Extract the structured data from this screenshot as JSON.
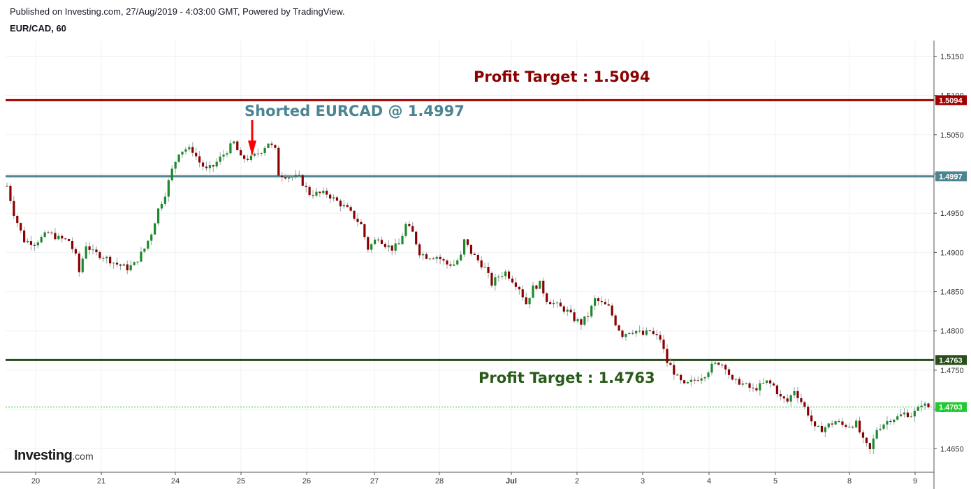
{
  "header": {
    "published": "Published on Investing.com, 27/Aug/2019 - 4:03:00 GMT, Powered by TradingView.",
    "symbol": "EUR/CAD, 60"
  },
  "logo": {
    "brand": "Investing",
    "suffix": ".com"
  },
  "chart_data": {
    "type": "candlestick",
    "symbol": "EUR/CAD",
    "interval": "60",
    "title": "",
    "xlabel": "",
    "ylabel": "",
    "ylim": [
      1.462,
      1.517
    ],
    "y_ticks": [
      1.515,
      1.51,
      1.505,
      1.5,
      1.495,
      1.49,
      1.485,
      1.48,
      1.475,
      1.47,
      1.465
    ],
    "y_tick_labels": [
      "1.5150",
      "1.5100",
      "1.5050",
      "1.5000",
      "1.4950",
      "1.4900",
      "1.4850",
      "1.4800",
      "1.4750",
      "1.4700",
      "1.4650"
    ],
    "x_tick_labels": [
      "20",
      "21",
      "24",
      "25",
      "26",
      "27",
      "28",
      "Jul",
      "2",
      "3",
      "4",
      "5",
      "8",
      "9"
    ],
    "grid": true,
    "colors": {
      "up": "#1b8a2b",
      "down": "#8b0000",
      "wick": "#9aa0a6"
    },
    "horizontal_lines": [
      {
        "value": 1.5094,
        "label": "1.5094",
        "color": "#a00000",
        "style": "solid"
      },
      {
        "value": 1.4997,
        "label": "1.4997",
        "color": "#4b8592",
        "style": "solid"
      },
      {
        "value": 1.4763,
        "label": "1.4763",
        "color": "#264d1a",
        "style": "solid"
      },
      {
        "value": 1.4703,
        "label": "1.4703",
        "color": "#22c933",
        "style": "dotted"
      }
    ],
    "annotations": [
      {
        "text": "Profit Target : 1.5094",
        "color": "#8b0000"
      },
      {
        "text": "Shorted EURCAD @ 1.4997",
        "color": "#4b8592"
      },
      {
        "text": "Profit Target : 1.4763",
        "color": "#2a5a1a"
      }
    ],
    "entry_marker": {
      "value": 1.503,
      "color": "#ff0000"
    },
    "price_path": [
      [
        0,
        1.4985
      ],
      [
        2,
        1.495
      ],
      [
        5,
        1.4915
      ],
      [
        8,
        1.4912
      ],
      [
        12,
        1.4925
      ],
      [
        15,
        1.4918
      ],
      [
        18,
        1.4915
      ],
      [
        20,
        1.4895
      ],
      [
        21,
        1.4875
      ],
      [
        23,
        1.491
      ],
      [
        25,
        1.49
      ],
      [
        28,
        1.4895
      ],
      [
        32,
        1.4885
      ],
      [
        35,
        1.488
      ],
      [
        37,
        1.4885
      ],
      [
        40,
        1.4905
      ],
      [
        42,
        1.4925
      ],
      [
        44,
        1.4955
      ],
      [
        46,
        1.4975
      ],
      [
        48,
        1.5005
      ],
      [
        50,
        1.5028
      ],
      [
        52,
        1.5032
      ],
      [
        54,
        1.503
      ],
      [
        56,
        1.5015
      ],
      [
        58,
        1.5005
      ],
      [
        60,
        1.501
      ],
      [
        63,
        1.5025
      ],
      [
        66,
        1.504
      ],
      [
        68,
        1.502
      ],
      [
        71,
        1.502
      ],
      [
        74,
        1.503
      ],
      [
        76,
        1.504
      ],
      [
        77,
        1.5035
      ],
      [
        78,
        1.503
      ],
      [
        79,
        1.5
      ],
      [
        82,
        1.4997
      ],
      [
        85,
        1.4995
      ],
      [
        88,
        1.4975
      ],
      [
        90,
        1.4975
      ],
      [
        93,
        1.4975
      ],
      [
        96,
        1.4965
      ],
      [
        99,
        1.4955
      ],
      [
        101,
        1.4945
      ],
      [
        103,
        1.4935
      ],
      [
        105,
        1.4905
      ],
      [
        108,
        1.492
      ],
      [
        110,
        1.491
      ],
      [
        112,
        1.4905
      ],
      [
        114,
        1.491
      ],
      [
        116,
        1.4935
      ],
      [
        118,
        1.4925
      ],
      [
        120,
        1.49
      ],
      [
        122,
        1.4895
      ],
      [
        125,
        1.4895
      ],
      [
        128,
        1.4885
      ],
      [
        130,
        1.4885
      ],
      [
        132,
        1.4895
      ],
      [
        133,
        1.4915
      ],
      [
        135,
        1.49
      ],
      [
        137,
        1.489
      ],
      [
        139,
        1.488
      ],
      [
        141,
        1.486
      ],
      [
        143,
        1.487
      ],
      [
        145,
        1.4875
      ],
      [
        147,
        1.4865
      ],
      [
        149,
        1.4855
      ],
      [
        151,
        1.4835
      ],
      [
        153,
        1.4855
      ],
      [
        155,
        1.486
      ],
      [
        157,
        1.484
      ],
      [
        159,
        1.4835
      ],
      [
        161,
        1.483
      ],
      [
        163,
        1.4825
      ],
      [
        165,
        1.4815
      ],
      [
        167,
        1.481
      ],
      [
        169,
        1.482
      ],
      [
        171,
        1.484
      ],
      [
        173,
        1.4835
      ],
      [
        175,
        1.483
      ],
      [
        177,
        1.481
      ],
      [
        179,
        1.4795
      ],
      [
        181,
        1.48
      ],
      [
        183,
        1.48
      ],
      [
        185,
        1.4795
      ],
      [
        187,
        1.48
      ],
      [
        188,
        1.4795
      ],
      [
        190,
        1.479
      ],
      [
        192,
        1.476
      ],
      [
        193,
        1.4755
      ],
      [
        195,
        1.474
      ],
      [
        197,
        1.473
      ],
      [
        199,
        1.4735
      ],
      [
        201,
        1.474
      ],
      [
        203,
        1.4745
      ],
      [
        205,
        1.4755
      ],
      [
        207,
        1.476
      ],
      [
        209,
        1.4755
      ],
      [
        211,
        1.4735
      ],
      [
        213,
        1.4735
      ],
      [
        215,
        1.473
      ],
      [
        217,
        1.4725
      ],
      [
        219,
        1.473
      ],
      [
        221,
        1.4735
      ],
      [
        223,
        1.473
      ],
      [
        225,
        1.4715
      ],
      [
        227,
        1.471
      ],
      [
        229,
        1.4725
      ],
      [
        231,
        1.471
      ],
      [
        233,
        1.4695
      ],
      [
        235,
        1.4675
      ],
      [
        237,
        1.4675
      ],
      [
        239,
        1.468
      ],
      [
        241,
        1.4685
      ],
      [
        243,
        1.468
      ],
      [
        245,
        1.468
      ],
      [
        247,
        1.4682
      ],
      [
        249,
        1.466
      ],
      [
        251,
        1.4648
      ],
      [
        253,
        1.4675
      ],
      [
        255,
        1.4682
      ],
      [
        257,
        1.4688
      ],
      [
        259,
        1.469
      ],
      [
        261,
        1.4695
      ],
      [
        263,
        1.4693
      ],
      [
        265,
        1.47
      ],
      [
        266,
        1.4708
      ],
      [
        267,
        1.4705
      ],
      [
        268,
        1.4703
      ]
    ]
  }
}
